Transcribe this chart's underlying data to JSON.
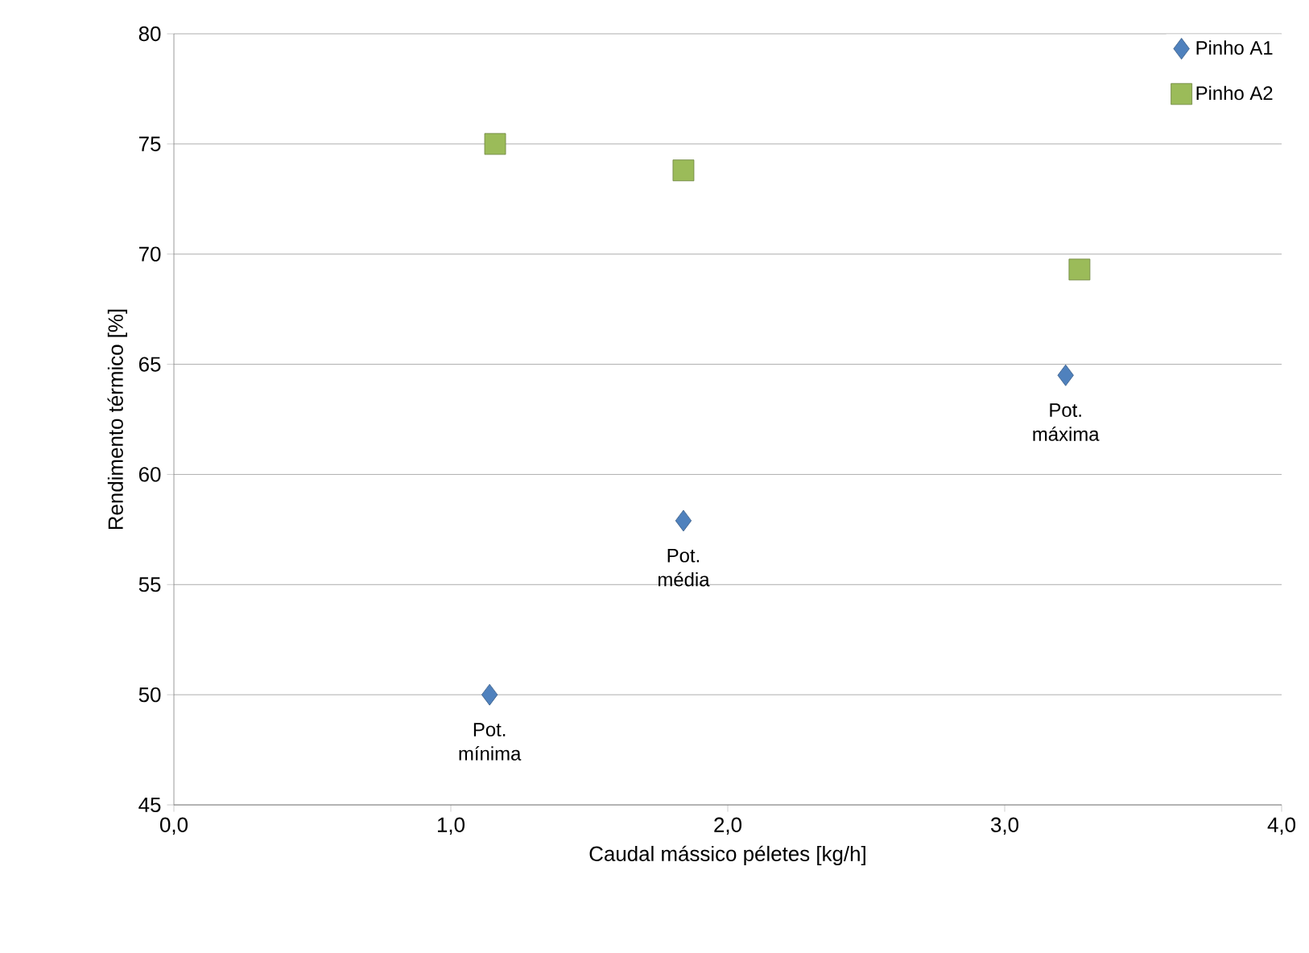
{
  "chart_data": {
    "type": "scatter",
    "xlabel": "Caudal mássico péletes [kg/h]",
    "ylabel": "Rendimento térmico [%]",
    "xlim": [
      0,
      4
    ],
    "ylim": [
      45,
      80
    ],
    "xticks": [
      {
        "value": 0,
        "label": "0,0"
      },
      {
        "value": 1,
        "label": "1,0"
      },
      {
        "value": 2,
        "label": "2,0"
      },
      {
        "value": 3,
        "label": "3,0"
      },
      {
        "value": 4,
        "label": "4,0"
      }
    ],
    "yticks": [
      45,
      50,
      55,
      60,
      65,
      70,
      75,
      80
    ],
    "grid": "y",
    "legend": "top right",
    "series": [
      {
        "name": "Pinho A1",
        "color": "#4f81bd",
        "marker": "diamond",
        "x": [
          1.14,
          1.84,
          3.22
        ],
        "values": [
          50.0,
          57.9,
          64.5
        ]
      },
      {
        "name": "Pinho A2",
        "color": "#9bbb59",
        "marker": "square",
        "x": [
          1.16,
          1.84,
          3.27
        ],
        "values": [
          75.0,
          73.8,
          69.3
        ]
      }
    ],
    "annotations": [
      {
        "text": "Pot. mínima",
        "x": 1.14,
        "y": 50.0
      },
      {
        "text": "Pot. média",
        "x": 1.84,
        "y": 57.9
      },
      {
        "text": "Pot. máxima",
        "x": 3.22,
        "y": 64.5
      }
    ]
  }
}
